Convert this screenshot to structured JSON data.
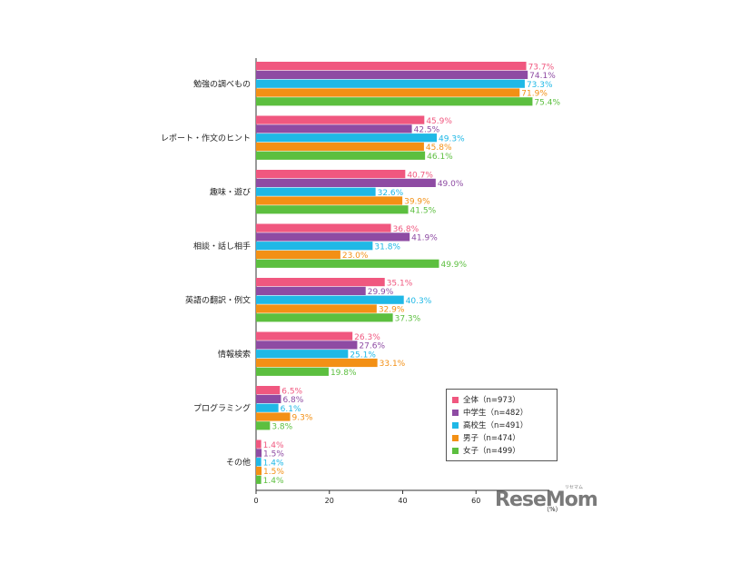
{
  "chart_data": {
    "type": "bar",
    "orientation": "horizontal",
    "categories": [
      "勉強の調べもの",
      "レポート・作文のヒント",
      "趣味・遊び",
      "相談・話し相手",
      "英語の翻訳・例文",
      "情報検索",
      "プログラミング",
      "その他"
    ],
    "series": [
      {
        "name": "全体（n=973）",
        "color": "#f0577f",
        "values": [
          73.7,
          45.9,
          40.7,
          36.8,
          35.1,
          26.3,
          6.5,
          1.4
        ],
        "labels": [
          "73.7%",
          "45.9%",
          "40.7%",
          "36.8%",
          "35.1%",
          "26.3%",
          "6.5%",
          "1.4%"
        ]
      },
      {
        "name": "中学生（n=482）",
        "color": "#8e4ba3",
        "values": [
          74.1,
          42.5,
          49.0,
          41.9,
          29.9,
          27.6,
          6.8,
          1.5
        ],
        "labels": [
          "74.1%",
          "42.5%",
          "49.0%",
          "41.9%",
          "29.9%",
          "27.6%",
          "6.8%",
          "1.5%"
        ]
      },
      {
        "name": "高校生（n=491）",
        "color": "#1fb8e6",
        "values": [
          73.3,
          49.3,
          32.6,
          31.8,
          40.3,
          25.1,
          6.1,
          1.4
        ],
        "labels": [
          "73.3%",
          "49.3%",
          "32.6%",
          "31.8%",
          "40.3%",
          "25.1%",
          "6.1%",
          "1.4%"
        ]
      },
      {
        "name": "男子（n=474）",
        "color": "#f39015",
        "values": [
          71.9,
          45.8,
          39.9,
          23.0,
          32.9,
          33.1,
          9.3,
          1.5
        ],
        "labels": [
          "71.9%",
          "45.8%",
          "39.9%",
          "23.0%",
          "32.9%",
          "33.1%",
          "9.3%",
          "1.5%"
        ]
      },
      {
        "name": "女子（n=499）",
        "color": "#5cbf3f",
        "values": [
          75.4,
          46.1,
          41.5,
          49.9,
          37.3,
          19.8,
          3.8,
          1.4
        ],
        "labels": [
          "75.4%",
          "46.1%",
          "41.5%",
          "49.9%",
          "37.3%",
          "19.8%",
          "3.8%",
          "1.4%"
        ]
      }
    ],
    "xticks": [
      "0",
      "20",
      "40",
      "60"
    ],
    "xlim": [
      0,
      80
    ],
    "xunit": "（%）",
    "legend_position": "bottom-right",
    "grid": false
  },
  "logo": {
    "text": "ReseMom",
    "ruby": "リセマム"
  }
}
